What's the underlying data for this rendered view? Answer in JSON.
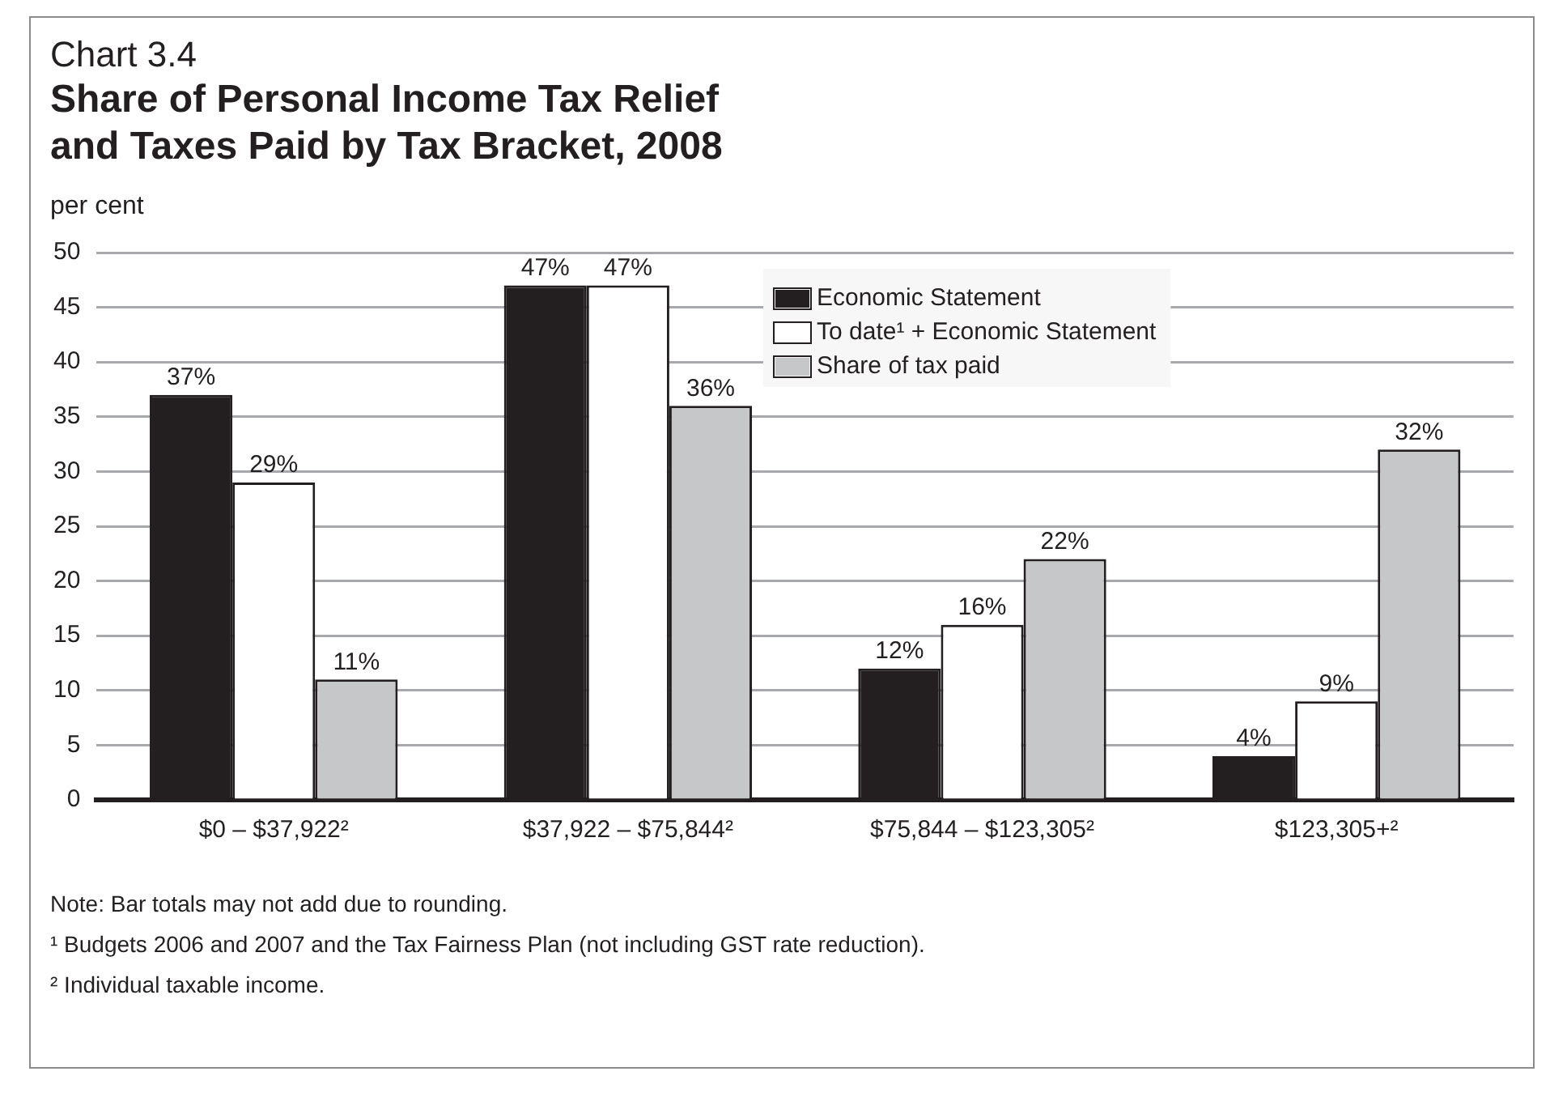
{
  "chart_data": {
    "type": "bar",
    "subtitle": "Chart 3.4",
    "title": "Share of Personal Income Tax Relief and Taxes Paid by Tax Bracket, 2008",
    "ylabel": "per cent",
    "categories": [
      "$0 – $37,922²",
      "$37,922 – $75,844²",
      "$75,844 – $123,305²",
      "$123,305+²"
    ],
    "series": [
      {
        "name": "Economic Statement",
        "color": "#231f20",
        "values": [
          37,
          47,
          12,
          4
        ],
        "value_labels": [
          "37%",
          "47%",
          "12%",
          "4%"
        ]
      },
      {
        "name": "To date¹ + Economic Statement",
        "color": "#ffffff",
        "values": [
          29,
          47,
          16,
          9
        ],
        "value_labels": [
          "29%",
          "47%",
          "16%",
          "9%"
        ]
      },
      {
        "name": "Share of tax paid",
        "color": "#c6c7c8",
        "values": [
          11,
          36,
          22,
          32
        ],
        "value_labels": [
          "11%",
          "36%",
          "22%",
          "32%"
        ]
      }
    ],
    "ylim": [
      0,
      50
    ],
    "yticks": [
      0,
      5,
      10,
      15,
      20,
      25,
      30,
      35,
      40,
      45,
      50
    ],
    "grid": "y",
    "legend": "top",
    "annotations": [
      "Note: Bar totals may not add due to rounding.",
      "¹ Budgets 2006 and 2007 and the Tax Fairness Plan (not including GST rate reduction).",
      "² Individual taxable income."
    ]
  }
}
